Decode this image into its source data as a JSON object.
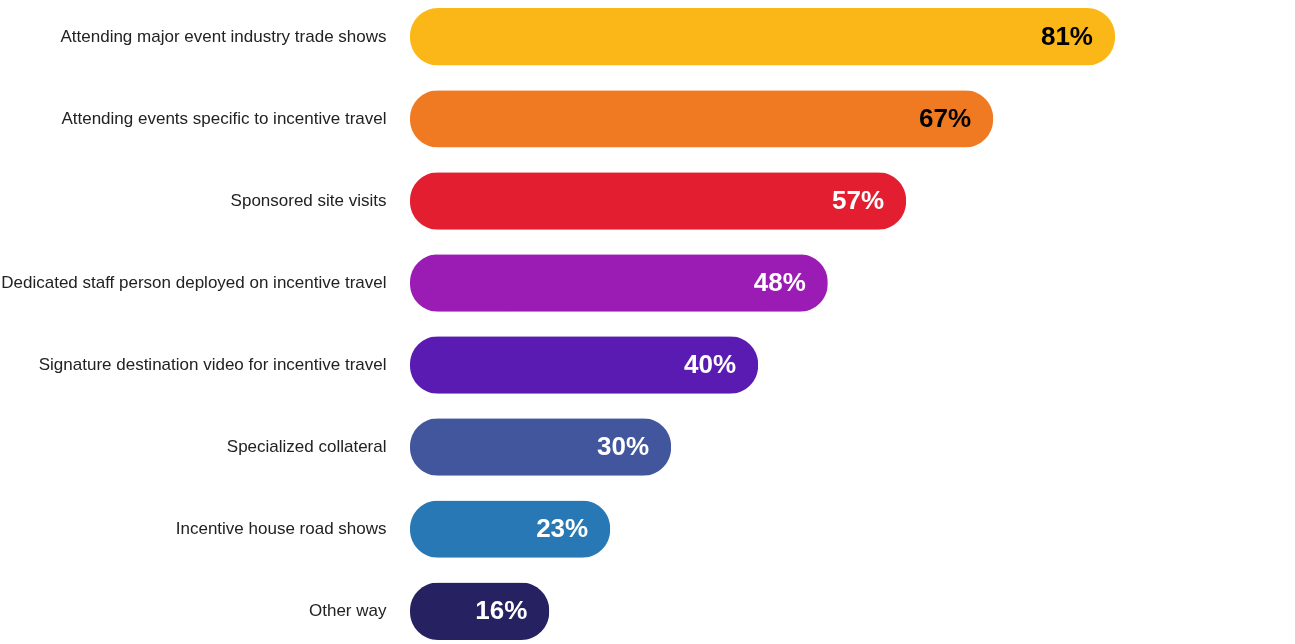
{
  "chart_data": {
    "type": "bar",
    "orientation": "horizontal",
    "categories": [
      "Attending major event industry trade shows",
      "Attending events specific to incentive travel",
      "Sponsored site visits",
      "Dedicated staff person deployed on incentive travel",
      "Signature destination video for incentive travel",
      "Specialized collateral",
      "Incentive house road shows",
      "Other way"
    ],
    "values": [
      81,
      67,
      57,
      48,
      40,
      30,
      23,
      16
    ],
    "value_labels": [
      "81%",
      "67%",
      "57%",
      "48%",
      "40%",
      "30%",
      "23%",
      "16%"
    ],
    "colors": [
      "#fbb718",
      "#f07a22",
      "#e31e30",
      "#9b1bb5",
      "#5a1bb2",
      "#41569c",
      "#2778b4",
      "#262261"
    ]
  }
}
